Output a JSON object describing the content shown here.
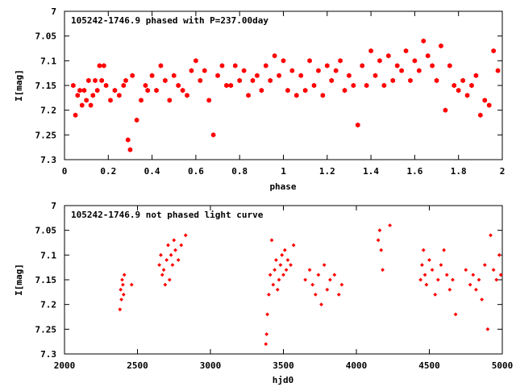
{
  "chart_data": [
    {
      "type": "scatter",
      "title": "105242-1746.9 phased with P=237.00day",
      "xlabel": "phase",
      "ylabel": "I[mag]",
      "xlim": [
        0,
        2
      ],
      "ylim": [
        7,
        7.3
      ],
      "y_inverted": true,
      "x_ticks": [
        "0",
        "0.2",
        "0.4",
        "0.6",
        "0.8",
        "1",
        "1.2",
        "1.4",
        "1.6",
        "1.8",
        "2"
      ],
      "y_ticks": [
        "7",
        "7.05",
        "7.1",
        "7.15",
        "7.2",
        "7.25",
        "7.3"
      ],
      "marker_color": "#ff0000",
      "marker": "filled-hexagon",
      "grid": false,
      "series": [
        {
          "x": [
            0.04,
            0.05,
            0.06,
            0.07,
            0.08,
            0.09,
            0.1,
            0.11,
            0.12,
            0.13,
            0.14,
            0.15,
            0.16,
            0.17,
            0.18,
            0.19,
            0.21,
            0.23,
            0.25,
            0.27,
            0.28,
            0.29,
            0.3,
            0.31,
            0.33,
            0.35,
            0.37,
            0.38,
            0.4,
            0.42,
            0.44,
            0.46,
            0.48,
            0.5,
            0.52,
            0.54,
            0.56,
            0.58,
            0.6,
            0.62,
            0.64,
            0.66,
            0.68,
            0.7,
            0.72,
            0.74,
            0.76,
            0.78,
            0.8,
            0.82,
            0.84,
            0.86,
            0.88,
            0.9,
            0.92,
            0.94,
            0.96,
            0.98,
            1.0,
            1.02,
            1.04,
            1.06,
            1.08,
            1.1,
            1.12,
            1.14,
            1.16,
            1.18,
            1.2,
            1.22,
            1.24,
            1.26,
            1.28,
            1.3,
            1.32,
            1.34,
            1.36,
            1.38,
            1.4,
            1.42,
            1.44,
            1.46,
            1.48,
            1.5,
            1.52,
            1.54,
            1.56,
            1.58,
            1.6,
            1.62,
            1.64,
            1.66,
            1.68,
            1.7,
            1.72,
            1.74,
            1.76,
            1.78,
            1.8,
            1.82,
            1.84,
            1.86,
            1.88,
            1.9,
            1.92,
            1.94,
            1.96,
            1.98
          ],
          "y": [
            7.15,
            7.21,
            7.17,
            7.16,
            7.19,
            7.16,
            7.18,
            7.14,
            7.19,
            7.17,
            7.14,
            7.16,
            7.11,
            7.14,
            7.11,
            7.15,
            7.18,
            7.16,
            7.17,
            7.15,
            7.14,
            7.26,
            7.28,
            7.13,
            7.22,
            7.18,
            7.15,
            7.16,
            7.13,
            7.16,
            7.11,
            7.14,
            7.18,
            7.13,
            7.15,
            7.16,
            7.17,
            7.12,
            7.1,
            7.14,
            7.12,
            7.18,
            7.25,
            7.13,
            7.11,
            7.15,
            7.15,
            7.11,
            7.14,
            7.12,
            7.17,
            7.14,
            7.13,
            7.16,
            7.11,
            7.14,
            7.09,
            7.13,
            7.1,
            7.16,
            7.12,
            7.17,
            7.13,
            7.16,
            7.1,
            7.15,
            7.12,
            7.17,
            7.11,
            7.14,
            7.12,
            7.1,
            7.16,
            7.13,
            7.15,
            7.23,
            7.11,
            7.15,
            7.08,
            7.13,
            7.1,
            7.15,
            7.09,
            7.14,
            7.11,
            7.12,
            7.08,
            7.14,
            7.1,
            7.12,
            7.06,
            7.09,
            7.11,
            7.14,
            7.07,
            7.2,
            7.11,
            7.15,
            7.16,
            7.14,
            7.17,
            7.15,
            7.13,
            7.21,
            7.18,
            7.19,
            7.08,
            7.12
          ],
          "values_estimated": true
        }
      ]
    },
    {
      "type": "scatter",
      "title": "105242-1746.9 not phased light curve",
      "xlabel": "hjd0",
      "ylabel": "I[mag]",
      "xlim": [
        2000,
        5000
      ],
      "ylim": [
        7,
        7.3
      ],
      "y_inverted": true,
      "x_ticks": [
        "2000",
        "2500",
        "3000",
        "3500",
        "4000",
        "4500",
        "5000"
      ],
      "y_ticks": [
        "7",
        "7.05",
        "7.1",
        "7.15",
        "7.2",
        "7.25",
        "7.3"
      ],
      "marker_color": "#ff0000",
      "marker": "small-diamond",
      "grid": false,
      "series": [
        {
          "x": [
            2380,
            2385,
            2390,
            2395,
            2400,
            2405,
            2410,
            2460,
            2650,
            2660,
            2670,
            2680,
            2690,
            2700,
            2710,
            2720,
            2730,
            2740,
            2750,
            2760,
            2780,
            2800,
            2830,
            3380,
            3385,
            3390,
            3400,
            3410,
            3420,
            3430,
            3440,
            3450,
            3460,
            3470,
            3480,
            3490,
            3500,
            3510,
            3520,
            3530,
            3550,
            3570,
            3650,
            3680,
            3700,
            3720,
            3740,
            3760,
            3780,
            3800,
            3820,
            3850,
            3880,
            3900,
            4150,
            4160,
            4170,
            4180,
            4230,
            4440,
            4450,
            4460,
            4470,
            4480,
            4500,
            4520,
            4540,
            4560,
            4580,
            4600,
            4620,
            4640,
            4660,
            4680,
            4750,
            4780,
            4800,
            4820,
            4840,
            4860,
            4880,
            4900,
            4920,
            4940,
            4960,
            4980,
            4990
          ],
          "y": [
            7.21,
            7.17,
            7.19,
            7.15,
            7.16,
            7.18,
            7.14,
            7.16,
            7.12,
            7.1,
            7.14,
            7.13,
            7.16,
            7.11,
            7.08,
            7.15,
            7.1,
            7.12,
            7.07,
            7.09,
            7.11,
            7.08,
            7.06,
            7.28,
            7.26,
            7.22,
            7.18,
            7.14,
            7.07,
            7.16,
            7.13,
            7.11,
            7.17,
            7.15,
            7.12,
            7.1,
            7.14,
            7.09,
            7.13,
            7.11,
            7.12,
            7.08,
            7.15,
            7.13,
            7.16,
            7.18,
            7.14,
            7.2,
            7.12,
            7.17,
            7.15,
            7.14,
            7.18,
            7.16,
            7.07,
            7.05,
            7.09,
            7.13,
            7.04,
            7.15,
            7.12,
            7.09,
            7.14,
            7.16,
            7.11,
            7.13,
            7.18,
            7.15,
            7.12,
            7.09,
            7.14,
            7.17,
            7.15,
            7.22,
            7.13,
            7.16,
            7.14,
            7.17,
            7.15,
            7.19,
            7.12,
            7.25,
            7.06,
            7.13,
            7.15,
            7.1,
            7.14
          ],
          "values_estimated": true
        }
      ]
    }
  ]
}
